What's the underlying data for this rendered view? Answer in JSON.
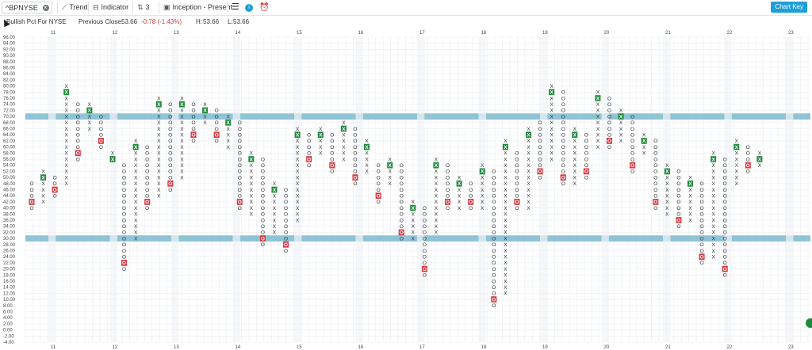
{
  "toolbar": {
    "symbol": "^BPNYSE",
    "trend_label": "Trend",
    "indicator_label": "Indicator",
    "box_value": "3",
    "range_label": "Inception - Present",
    "chart_key_label": "Chart Key"
  },
  "quote": {
    "name": "Bullish Pct For NYSE",
    "prev_close_label": "Previous Close:",
    "prev_close": "53.66",
    "change": "-0.78 (-1.43%)",
    "high_label": "H:",
    "high": "53.66",
    "low_label": "L:",
    "low": "53.66"
  },
  "colors": {
    "up_box": "#1f8a3a",
    "down_box": "#d9363e",
    "band": "#8fc3d6",
    "grid_light": "#e9edf0",
    "chart_key": "#1e9fd9"
  },
  "chart_data": {
    "type": "point_and_figure",
    "box_size": 2,
    "y_range": [
      -4,
      96
    ],
    "y_tick_labels": [
      "96.00",
      "94.00",
      "92.00",
      "90.00",
      "88.00",
      "86.00",
      "84.00",
      "82.00",
      "80.00",
      "78.00",
      "76.00",
      "74.00",
      "72.00",
      "70.00",
      "68.00",
      "66.00",
      "64.00",
      "62.00",
      "60.00",
      "58.00",
      "56.00",
      "54.00",
      "52.00",
      "50.00",
      "48.00",
      "46.00",
      "44.00",
      "42.00",
      "40.00",
      "38.00",
      "36.00",
      "34.00",
      "32.00",
      "30.00",
      "28.00",
      "26.00",
      "24.00",
      "22.00",
      "20.00",
      "18.00",
      "16.00",
      "14.00",
      "12.00",
      "10.00",
      "8.00",
      "6.00",
      "4.00",
      "2.00",
      "0.00",
      "-2.00",
      "-4.00"
    ],
    "highlighted_levels": [
      70,
      30
    ],
    "x_date_labels": [
      "11",
      "12",
      "13",
      "14",
      "15",
      "16",
      "17",
      "18",
      "19",
      "20",
      "21",
      "22",
      "23"
    ],
    "columns": [
      {
        "type": "O",
        "top": 48,
        "bottom": 40
      },
      {
        "type": "X",
        "top": 52,
        "bottom": 42
      },
      {
        "type": "O",
        "top": 50,
        "bottom": 44
      },
      {
        "type": "X",
        "top": 80,
        "bottom": 48
      },
      {
        "type": "O",
        "top": 74,
        "bottom": 56
      },
      {
        "type": "X",
        "top": 74,
        "bottom": 66
      },
      {
        "type": "O",
        "top": 70,
        "bottom": 60
      },
      {
        "type": "X",
        "top": 58,
        "bottom": 56
      },
      {
        "type": "O",
        "top": 54,
        "bottom": 20
      },
      {
        "type": "X",
        "top": 62,
        "bottom": 30
      },
      {
        "type": "O",
        "top": 60,
        "bottom": 40
      },
      {
        "type": "X",
        "top": 76,
        "bottom": 44
      },
      {
        "type": "O",
        "top": 74,
        "bottom": 46
      },
      {
        "type": "X",
        "top": 76,
        "bottom": 50
      },
      {
        "type": "O",
        "top": 74,
        "bottom": 62
      },
      {
        "type": "X",
        "top": 74,
        "bottom": 68
      },
      {
        "type": "O",
        "top": 72,
        "bottom": 62
      },
      {
        "type": "X",
        "top": 70,
        "bottom": 60
      },
      {
        "type": "O",
        "top": 68,
        "bottom": 40
      },
      {
        "type": "X",
        "top": 58,
        "bottom": 38
      },
      {
        "type": "O",
        "top": 56,
        "bottom": 28
      },
      {
        "type": "X",
        "top": 48,
        "bottom": 32
      },
      {
        "type": "O",
        "top": 46,
        "bottom": 26
      },
      {
        "type": "X",
        "top": 66,
        "bottom": 36
      },
      {
        "type": "O",
        "top": 64,
        "bottom": 54
      },
      {
        "type": "X",
        "top": 66,
        "bottom": 58
      },
      {
        "type": "O",
        "top": 64,
        "bottom": 52
      },
      {
        "type": "X",
        "top": 68,
        "bottom": 56
      },
      {
        "type": "O",
        "top": 66,
        "bottom": 48
      },
      {
        "type": "X",
        "top": 62,
        "bottom": 52
      },
      {
        "type": "O",
        "top": 54,
        "bottom": 42
      },
      {
        "type": "X",
        "top": 56,
        "bottom": 48
      },
      {
        "type": "O",
        "top": 54,
        "bottom": 30
      },
      {
        "type": "X",
        "top": 42,
        "bottom": 30
      },
      {
        "type": "O",
        "top": 40,
        "bottom": 18
      },
      {
        "type": "X",
        "top": 56,
        "bottom": 32
      },
      {
        "type": "O",
        "top": 54,
        "bottom": 40
      },
      {
        "type": "X",
        "top": 50,
        "bottom": 40
      },
      {
        "type": "O",
        "top": 48,
        "bottom": 40
      },
      {
        "type": "X",
        "top": 54,
        "bottom": 40
      },
      {
        "type": "O",
        "top": 52,
        "bottom": 8
      },
      {
        "type": "X",
        "top": 62,
        "bottom": 12
      },
      {
        "type": "O",
        "top": 58,
        "bottom": 40
      },
      {
        "type": "X",
        "top": 66,
        "bottom": 40
      },
      {
        "type": "O",
        "top": 68,
        "bottom": 50
      },
      {
        "type": "X",
        "top": 80,
        "bottom": 56
      },
      {
        "type": "O",
        "top": 78,
        "bottom": 48
      },
      {
        "type": "X",
        "top": 66,
        "bottom": 48
      },
      {
        "type": "O",
        "top": 64,
        "bottom": 50
      },
      {
        "type": "X",
        "top": 78,
        "bottom": 60
      },
      {
        "type": "O",
        "top": 76,
        "bottom": 60
      },
      {
        "type": "X",
        "top": 72,
        "bottom": 62
      },
      {
        "type": "O",
        "top": 70,
        "bottom": 52
      },
      {
        "type": "X",
        "top": 64,
        "bottom": 58
      },
      {
        "type": "O",
        "top": 62,
        "bottom": 40
      },
      {
        "type": "X",
        "top": 54,
        "bottom": 38
      },
      {
        "type": "O",
        "top": 52,
        "bottom": 34
      },
      {
        "type": "X",
        "top": 50,
        "bottom": 36
      },
      {
        "type": "O",
        "top": 48,
        "bottom": 22
      },
      {
        "type": "X",
        "top": 58,
        "bottom": 24
      },
      {
        "type": "O",
        "top": 56,
        "bottom": 18
      },
      {
        "type": "X",
        "top": 62,
        "bottom": 48
      },
      {
        "type": "O",
        "top": 60,
        "bottom": 52
      },
      {
        "type": "X",
        "top": 58,
        "bottom": 54
      }
    ]
  }
}
